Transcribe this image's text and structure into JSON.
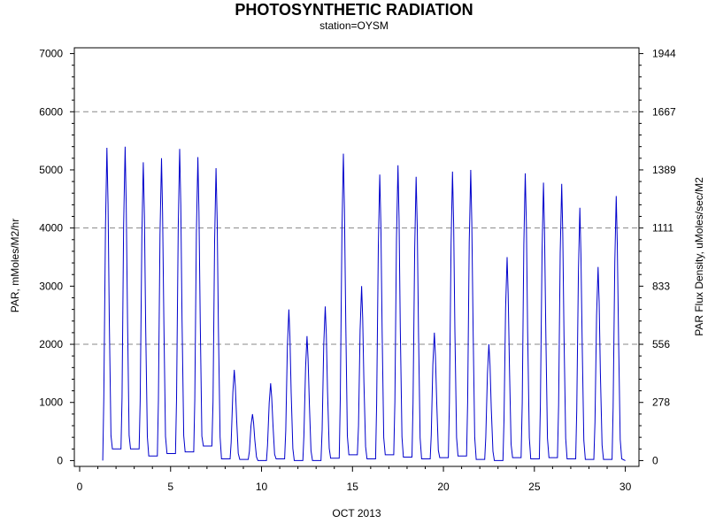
{
  "chart_data": {
    "type": "line",
    "title": "PHOTOSYNTHETIC RADIATION",
    "subtitle": "station=OYSM",
    "xlabel": "OCT 2013",
    "ylabel": "PAR, mMoles/M2/hr",
    "y2label": "PAR Flux Density, uMoles/sec/M2",
    "xlim": [
      0,
      30.3
    ],
    "ylim": [
      -100,
      7100
    ],
    "x_ticks": [
      0,
      5,
      10,
      15,
      20,
      25,
      30
    ],
    "x_tick_labels": [
      "0",
      "5",
      "10",
      "15",
      "20",
      "25",
      "30"
    ],
    "y_ticks": [
      0,
      1000,
      2000,
      3000,
      4000,
      5000,
      6000,
      7000
    ],
    "y_tick_labels": [
      "0",
      "1000",
      "2000",
      "3000",
      "4000",
      "5000",
      "6000",
      "7000"
    ],
    "y2_ticks": [
      0,
      1000,
      2000,
      3000,
      4000,
      5000,
      6000,
      7000
    ],
    "y2_tick_labels": [
      "0",
      "278",
      "556",
      "833",
      "1111",
      "1389",
      "1667",
      "1944"
    ],
    "gridlines_y": [
      2000,
      4000,
      6000
    ],
    "grid": "dashed horizontal",
    "line_color": "#0000cc",
    "daily_peaks": [
      {
        "day": 1,
        "peak": 5380,
        "low": 200
      },
      {
        "day": 2,
        "peak": 5400,
        "low": 200
      },
      {
        "day": 3,
        "peak": 5130,
        "low": 80
      },
      {
        "day": 4,
        "peak": 5200,
        "low": 120
      },
      {
        "day": 5,
        "peak": 5360,
        "low": 150
      },
      {
        "day": 6,
        "peak": 5220,
        "low": 250
      },
      {
        "day": 7,
        "peak": 5030,
        "low": 30
      },
      {
        "day": 8,
        "peak": 1560,
        "low": 20
      },
      {
        "day": 9,
        "peak": 800,
        "low": 0
      },
      {
        "day": 10,
        "peak": 1330,
        "low": 30
      },
      {
        "day": 11,
        "peak": 2600,
        "low": 0
      },
      {
        "day": 12,
        "peak": 2140,
        "low": 0
      },
      {
        "day": 13,
        "peak": 2650,
        "low": 40
      },
      {
        "day": 14,
        "peak": 5280,
        "low": 100
      },
      {
        "day": 15,
        "peak": 3000,
        "low": 30
      },
      {
        "day": 16,
        "peak": 4920,
        "low": 100
      },
      {
        "day": 17,
        "peak": 5080,
        "low": 60
      },
      {
        "day": 18,
        "peak": 4880,
        "low": 30
      },
      {
        "day": 19,
        "peak": 2200,
        "low": 50
      },
      {
        "day": 20,
        "peak": 4970,
        "low": 80
      },
      {
        "day": 21,
        "peak": 5000,
        "low": 20
      },
      {
        "day": 22,
        "peak": 2000,
        "low": 0
      },
      {
        "day": 23,
        "peak": 3500,
        "low": 50
      },
      {
        "day": 24,
        "peak": 4940,
        "low": 30
      },
      {
        "day": 25,
        "peak": 4780,
        "low": 50
      },
      {
        "day": 26,
        "peak": 4760,
        "low": 30
      },
      {
        "day": 27,
        "peak": 4350,
        "low": 20
      },
      {
        "day": 28,
        "peak": 3330,
        "low": 20
      },
      {
        "day": 29,
        "peak": 4550,
        "low": 30
      }
    ]
  }
}
